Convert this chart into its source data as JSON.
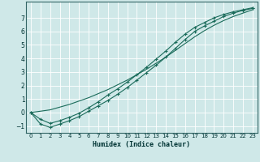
{
  "xlabel": "Humidex (Indice chaleur)",
  "xlim": [
    -0.5,
    23.5
  ],
  "ylim": [
    -1.5,
    8.2
  ],
  "yticks": [
    -1,
    0,
    1,
    2,
    3,
    4,
    5,
    6,
    7
  ],
  "xticks": [
    0,
    1,
    2,
    3,
    4,
    5,
    6,
    7,
    8,
    9,
    10,
    11,
    12,
    13,
    14,
    15,
    16,
    17,
    18,
    19,
    20,
    21,
    22,
    23
  ],
  "bg_color": "#cfe8e8",
  "grid_color": "#ffffff",
  "line_color": "#1a6b5a",
  "line1_x": [
    0,
    1,
    2,
    3,
    4,
    5,
    6,
    7,
    8,
    9,
    10,
    11,
    12,
    13,
    14,
    15,
    16,
    17,
    18,
    19,
    20,
    21,
    22,
    23
  ],
  "line1_y": [
    0.0,
    -0.85,
    -1.1,
    -0.85,
    -0.6,
    -0.3,
    0.1,
    0.5,
    0.9,
    1.35,
    1.85,
    2.4,
    2.95,
    3.5,
    4.1,
    4.75,
    5.4,
    6.0,
    6.4,
    6.75,
    7.1,
    7.35,
    7.55,
    7.7
  ],
  "line2_x": [
    0,
    1,
    2,
    3,
    4,
    5,
    6,
    7,
    8,
    9,
    10,
    11,
    12,
    13,
    14,
    15,
    16,
    17,
    18,
    19,
    20,
    21,
    22,
    23
  ],
  "line2_y": [
    0.0,
    -0.5,
    -0.8,
    -0.6,
    -0.35,
    -0.05,
    0.35,
    0.8,
    1.3,
    1.75,
    2.25,
    2.8,
    3.35,
    3.95,
    4.55,
    5.2,
    5.8,
    6.3,
    6.65,
    7.0,
    7.25,
    7.45,
    7.6,
    7.75
  ],
  "line3_x": [
    0,
    1,
    2,
    3,
    4,
    5,
    6,
    7,
    8,
    9,
    10,
    11,
    12,
    13,
    14,
    15,
    16,
    17,
    18,
    19,
    20,
    21,
    22,
    23
  ],
  "line3_y": [
    0.0,
    0.1,
    0.2,
    0.4,
    0.6,
    0.85,
    1.1,
    1.4,
    1.7,
    2.05,
    2.4,
    2.8,
    3.2,
    3.65,
    4.1,
    4.6,
    5.1,
    5.6,
    6.05,
    6.45,
    6.8,
    7.1,
    7.35,
    7.6
  ]
}
